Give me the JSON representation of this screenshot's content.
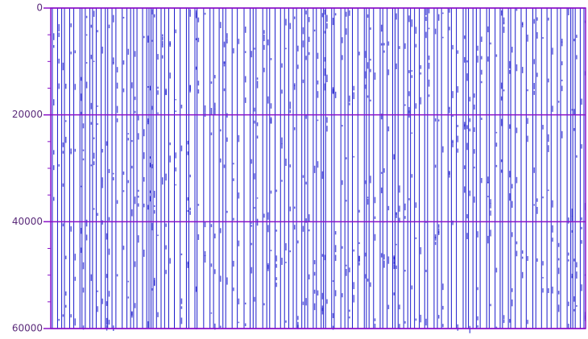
{
  "chart_data": {
    "type": "seismic",
    "ylim": [
      0,
      60000
    ],
    "yticks": [
      0,
      20000,
      40000,
      60000
    ],
    "inverted_y": true,
    "grid": true,
    "color": "#1a1acc",
    "axis_color": "#8a10c8"
  }
}
